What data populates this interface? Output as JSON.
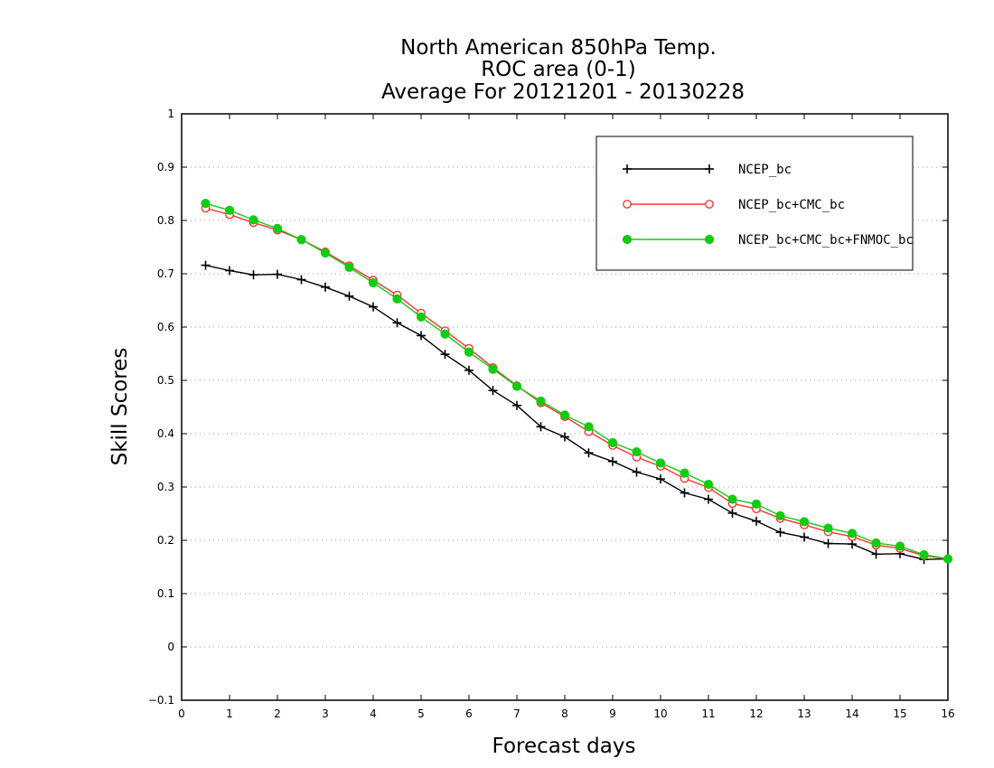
{
  "chart_data": {
    "type": "line",
    "title": [
      "North American 850hPa Temp.",
      "ROC area (0-1)",
      "Average For 20121201 - 20130228"
    ],
    "xlabel": "Forecast days",
    "ylabel": "Skill Scores",
    "xlim": [
      0,
      16
    ],
    "ylim": [
      -0.1,
      1
    ],
    "x_ticks": [
      "0",
      "1",
      "2",
      "3",
      "4",
      "5",
      "6",
      "7",
      "8",
      "9",
      "10",
      "11",
      "12",
      "13",
      "14",
      "15",
      "16"
    ],
    "y_ticks": [
      "−0.1",
      "0",
      "0.1",
      "0.2",
      "0.3",
      "0.4",
      "0.5",
      "0.6",
      "0.7",
      "0.8",
      "0.9",
      "1"
    ],
    "grid": "horizontal-dotted",
    "legend_position": "top-right",
    "x": [
      0.5,
      1,
      1.5,
      2,
      2.5,
      3,
      3.5,
      4,
      4.5,
      5,
      5.5,
      6,
      6.5,
      7,
      7.5,
      8,
      8.5,
      9,
      9.5,
      10,
      10.5,
      11,
      11.5,
      12,
      12.5,
      13,
      13.5,
      14,
      14.5,
      15,
      15.5,
      16
    ],
    "series": [
      {
        "name": "NCEP_bc",
        "color": "#000000",
        "marker": "plus",
        "values": [
          0.716,
          0.706,
          0.698,
          0.699,
          0.689,
          0.675,
          0.658,
          0.638,
          0.608,
          0.584,
          0.549,
          0.519,
          0.481,
          0.453,
          0.413,
          0.394,
          0.364,
          0.348,
          0.328,
          0.315,
          0.289,
          0.277,
          0.251,
          0.236,
          0.215,
          0.206,
          0.194,
          0.193,
          0.174,
          0.175,
          0.164,
          0.165
        ]
      },
      {
        "name": "NCEP_bc+CMC_bc",
        "color": "#ff3333",
        "marker": "open-circle",
        "values": [
          0.823,
          0.811,
          0.796,
          0.782,
          0.764,
          0.741,
          0.715,
          0.688,
          0.66,
          0.626,
          0.593,
          0.56,
          0.524,
          0.49,
          0.458,
          0.432,
          0.404,
          0.378,
          0.356,
          0.339,
          0.316,
          0.299,
          0.269,
          0.259,
          0.241,
          0.229,
          0.216,
          0.207,
          0.191,
          0.185,
          0.171,
          0.165
        ]
      },
      {
        "name": "NCEP_bc+CMC_bc+FNMOC_bc",
        "color": "#11cc11",
        "marker": "filled-circle",
        "values": [
          0.832,
          0.819,
          0.801,
          0.785,
          0.764,
          0.739,
          0.712,
          0.683,
          0.653,
          0.619,
          0.587,
          0.553,
          0.521,
          0.489,
          0.461,
          0.435,
          0.413,
          0.383,
          0.366,
          0.345,
          0.326,
          0.305,
          0.277,
          0.268,
          0.246,
          0.235,
          0.223,
          0.213,
          0.195,
          0.189,
          0.173,
          0.165
        ]
      }
    ]
  }
}
